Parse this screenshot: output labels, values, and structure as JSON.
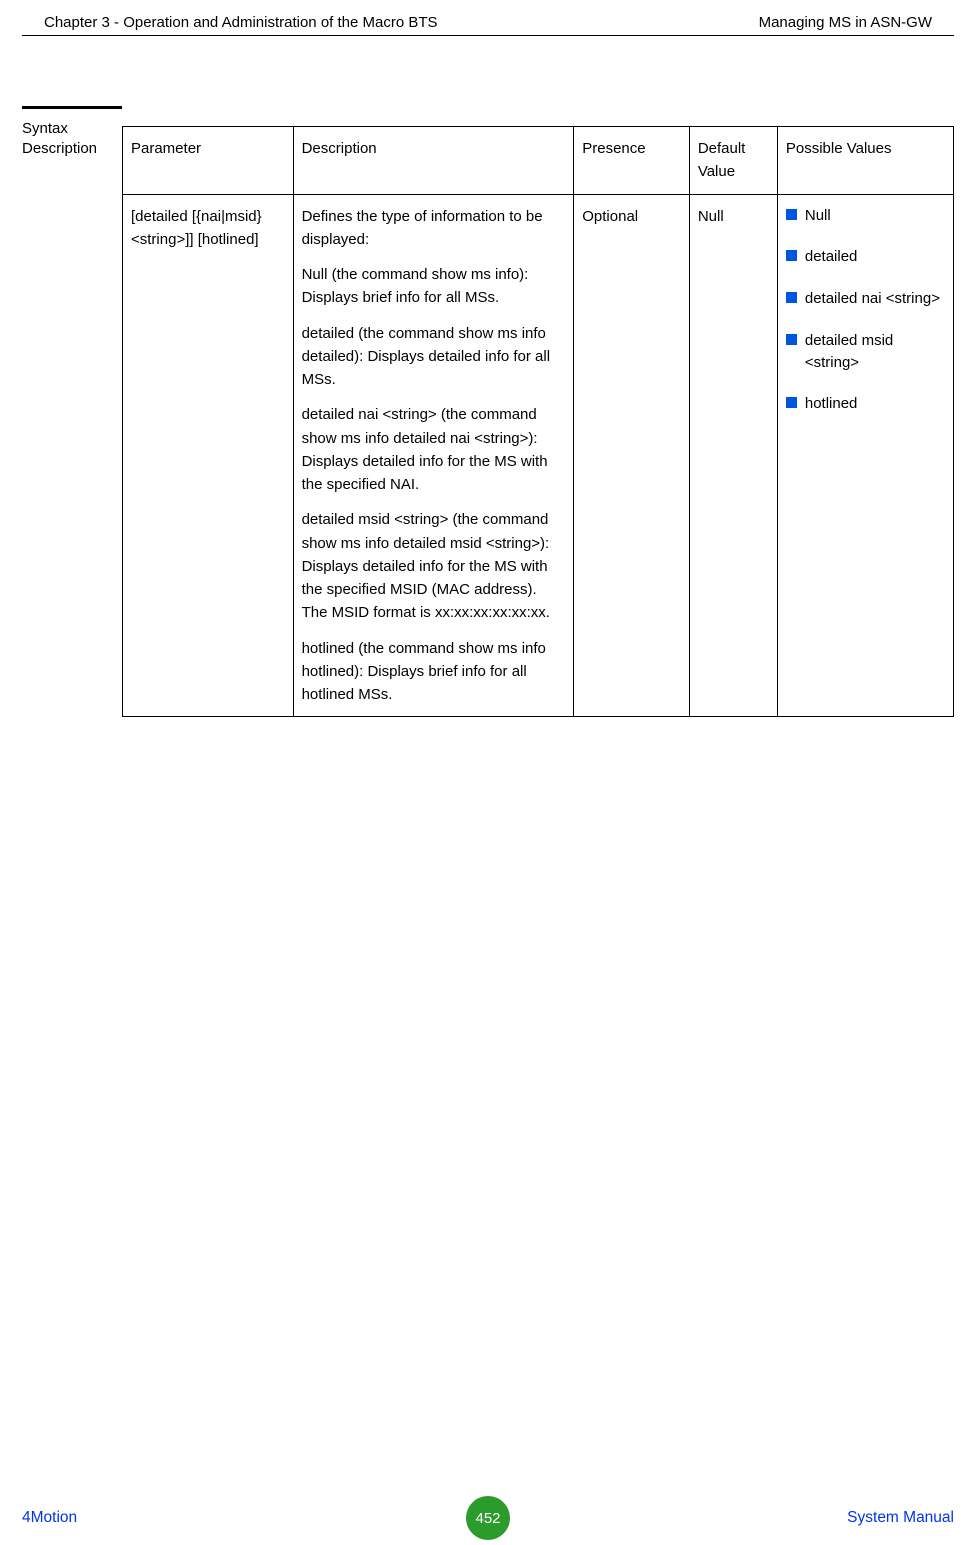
{
  "header": {
    "left": "Chapter 3 - Operation and Administration of the Macro BTS",
    "right": "Managing MS in ASN-GW"
  },
  "syntax_label_line1": "Syntax",
  "syntax_label_line2": "Description",
  "table": {
    "headers": {
      "parameter": "Parameter",
      "description": "Description",
      "presence": "Presence",
      "default_value": "Default Value",
      "possible_values": "Possible Values"
    },
    "row": {
      "parameter": "[detailed [{nai|msid}<string>]] [hotlined]",
      "description": {
        "p1": "Defines the type of information to be displayed:",
        "p2": "Null (the command show ms info): Displays brief info for all MSs.",
        "p3": "detailed (the command show ms info detailed): Displays detailed info for all MSs.",
        "p4": "detailed nai <string> (the command show ms info detailed nai <string>): Displays detailed info for the MS with the specified NAI.",
        "p5": "detailed msid <string> (the command show ms info detailed msid <string>): Displays detailed info for the MS with the specified MSID (MAC address). The MSID format is xx:xx:xx:xx:xx:xx.",
        "p6": "hotlined (the command show ms info hotlined): Displays brief info for all hotlined MSs."
      },
      "presence": "Optional",
      "default_value": "Null",
      "possible_values": [
        "Null",
        "detailed",
        "detailed nai <string>",
        "detailed msid <string>",
        "hotlined"
      ]
    }
  },
  "footer": {
    "left": "4Motion",
    "page": "452",
    "right": "System Manual"
  },
  "colors": {
    "bullet_color": "#0055dd",
    "link_color": "#0033ee",
    "badge_color": "#2b9b2b"
  }
}
